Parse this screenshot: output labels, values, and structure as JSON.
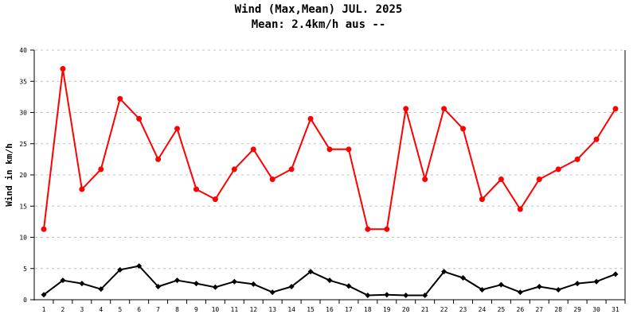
{
  "chart_data": {
    "type": "line",
    "title": "Wind (Max,Mean) JUL. 2025",
    "subtitle": "Mean: 2.4km/h aus --",
    "xlabel": "",
    "ylabel": "Wind in km/h",
    "ylim": [
      0,
      40
    ],
    "yticks": [
      0,
      5,
      10,
      15,
      20,
      25,
      30,
      35,
      40
    ],
    "grid": true,
    "legend": null,
    "x": [
      1,
      2,
      3,
      4,
      5,
      6,
      7,
      8,
      9,
      10,
      11,
      12,
      13,
      14,
      15,
      16,
      17,
      18,
      19,
      20,
      21,
      22,
      23,
      24,
      25,
      26,
      27,
      28,
      29,
      30,
      31
    ],
    "series": [
      {
        "name": "Max",
        "color": "#ff0000",
        "marker": "circle",
        "values": [
          11.3,
          37.0,
          17.7,
          20.9,
          32.2,
          29.0,
          22.5,
          27.4,
          17.7,
          16.1,
          20.9,
          24.1,
          19.3,
          20.9,
          29.0,
          24.1,
          24.1,
          11.3,
          11.3,
          30.6,
          19.3,
          30.6,
          27.4,
          16.1,
          19.3,
          14.5,
          19.3,
          20.9,
          22.5,
          25.7,
          30.6
        ]
      },
      {
        "name": "Mean",
        "color": "#000000",
        "marker": "diamond",
        "values": [
          0.8,
          3.1,
          2.6,
          1.7,
          4.8,
          5.4,
          2.1,
          3.1,
          2.6,
          2.0,
          2.9,
          2.5,
          1.2,
          2.1,
          4.5,
          3.1,
          2.2,
          0.7,
          0.8,
          0.7,
          0.7,
          4.5,
          3.5,
          1.6,
          2.4,
          1.2,
          2.1,
          1.6,
          2.6,
          2.9,
          4.1
        ]
      }
    ]
  }
}
